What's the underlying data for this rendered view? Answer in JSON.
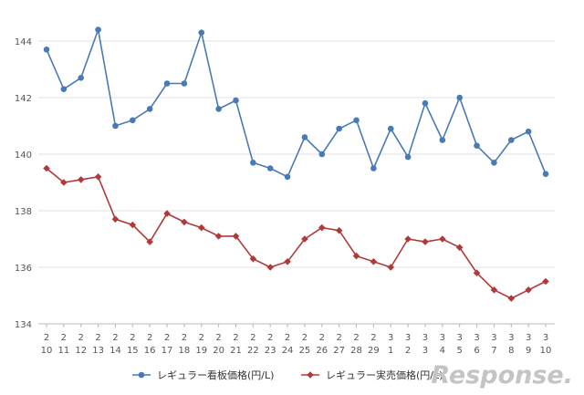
{
  "chart_data": {
    "type": "line",
    "categories": [
      [
        "2",
        "10"
      ],
      [
        "2",
        "11"
      ],
      [
        "2",
        "12"
      ],
      [
        "2",
        "13"
      ],
      [
        "2",
        "14"
      ],
      [
        "2",
        "15"
      ],
      [
        "2",
        "16"
      ],
      [
        "2",
        "17"
      ],
      [
        "2",
        "18"
      ],
      [
        "2",
        "19"
      ],
      [
        "2",
        "20"
      ],
      [
        "2",
        "21"
      ],
      [
        "2",
        "22"
      ],
      [
        "2",
        "23"
      ],
      [
        "2",
        "24"
      ],
      [
        "2",
        "25"
      ],
      [
        "2",
        "26"
      ],
      [
        "2",
        "27"
      ],
      [
        "2",
        "28"
      ],
      [
        "2",
        "29"
      ],
      [
        "3",
        "1"
      ],
      [
        "3",
        "2"
      ],
      [
        "3",
        "3"
      ],
      [
        "3",
        "4"
      ],
      [
        "3",
        "5"
      ],
      [
        "3",
        "6"
      ],
      [
        "3",
        "7"
      ],
      [
        "3",
        "8"
      ],
      [
        "3",
        "9"
      ],
      [
        "3",
        "10"
      ]
    ],
    "series": [
      {
        "name": "レギュラー看板価格(円/L)",
        "color": "#4a7ab5",
        "marker": "circle",
        "values": [
          143.7,
          142.3,
          142.7,
          144.4,
          141.0,
          141.2,
          141.6,
          142.5,
          142.5,
          144.3,
          141.6,
          141.9,
          139.7,
          139.5,
          139.2,
          140.6,
          140.0,
          140.9,
          141.2,
          139.5,
          140.9,
          139.9,
          141.8,
          140.5,
          142.0,
          140.3,
          139.7,
          140.5,
          140.8,
          139.3
        ]
      },
      {
        "name": "レギュラー実売価格(円/L)",
        "color": "#b03a3a",
        "marker": "diamond",
        "values": [
          139.5,
          139.0,
          139.1,
          139.2,
          137.7,
          137.5,
          136.9,
          137.9,
          137.6,
          137.4,
          137.1,
          137.1,
          136.3,
          136.0,
          136.2,
          137.0,
          137.4,
          137.3,
          136.4,
          136.2,
          136.0,
          137.0,
          136.9,
          137.0,
          136.7,
          135.8,
          135.2,
          134.9,
          135.2,
          135.5
        ]
      }
    ],
    "ylim": [
      134,
      144
    ],
    "yticks": [
      134,
      136,
      138,
      140,
      142,
      144
    ],
    "grid": true,
    "legend_position": "bottom"
  },
  "watermark": {
    "text": "Response."
  }
}
